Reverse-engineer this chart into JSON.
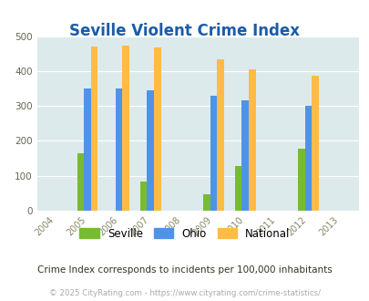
{
  "title": "Seville Violent Crime Index",
  "years": [
    2004,
    2005,
    2006,
    2007,
    2008,
    2009,
    2010,
    2011,
    2012,
    2013
  ],
  "data_years": [
    2005,
    2006,
    2007,
    2009,
    2010,
    2012
  ],
  "seville": [
    165,
    0,
    83,
    47,
    128,
    178
  ],
  "ohio": [
    350,
    350,
    345,
    330,
    317,
    300
  ],
  "national": [
    470,
    473,
    467,
    433,
    406,
    386
  ],
  "seville_color": "#77bb33",
  "ohio_color": "#4d94e8",
  "national_color": "#ffbb44",
  "bg_color": "#ddeaec",
  "title_color": "#1a5ca8",
  "ylim": [
    0,
    500
  ],
  "yticks": [
    0,
    100,
    200,
    300,
    400,
    500
  ],
  "bar_width": 0.22,
  "subtitle": "Crime Index corresponds to incidents per 100,000 inhabitants",
  "footer": "© 2025 CityRating.com - https://www.cityrating.com/crime-statistics/",
  "legend_labels": [
    "Seville",
    "Ohio",
    "National"
  ]
}
